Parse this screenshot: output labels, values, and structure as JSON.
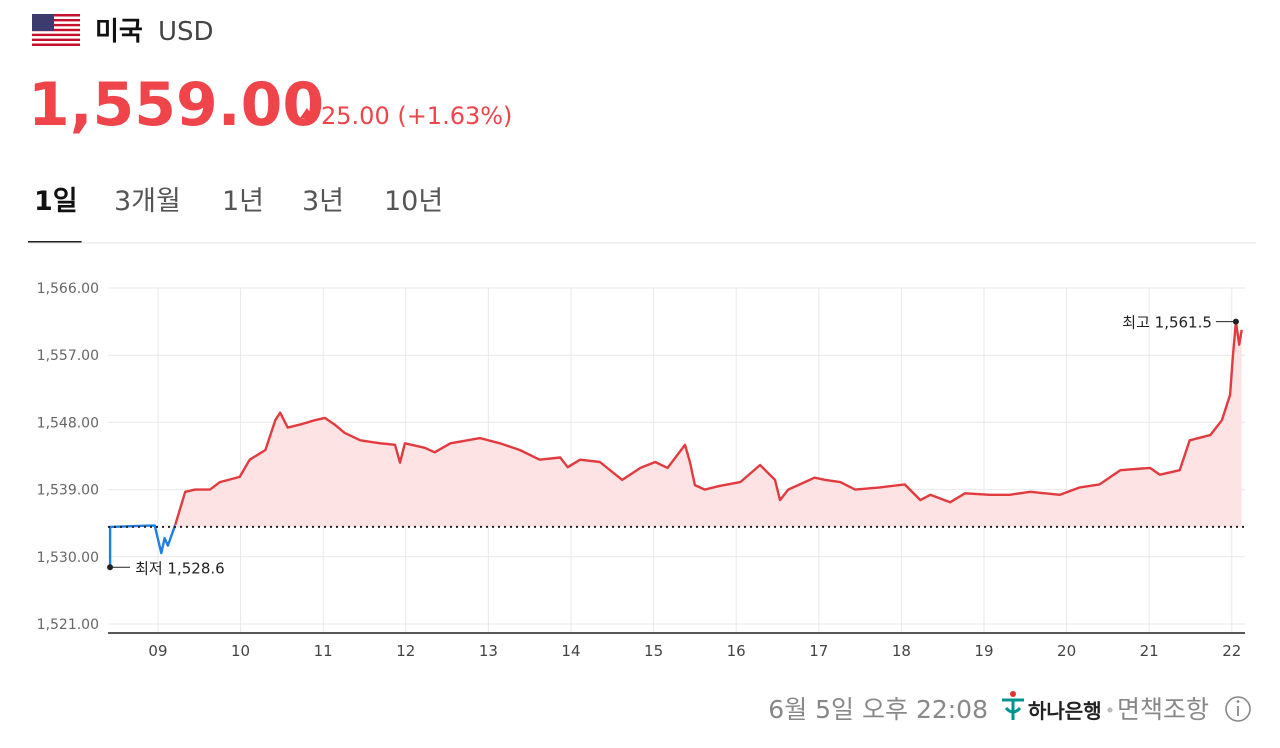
{
  "header": {
    "country": "미국",
    "currency": "USD",
    "price": "1,559.00",
    "change": "25.00 (+1.63%)"
  },
  "tabs": {
    "items": [
      "1일",
      "3개월",
      "1년",
      "3년",
      "10년"
    ],
    "active": 0
  },
  "chart_data": {
    "type": "line",
    "xlim": [
      8.395,
      22.16
    ],
    "xticks": [
      {
        "value": 9,
        "label": "09"
      },
      10,
      11,
      12,
      13,
      14,
      15,
      16,
      17,
      18,
      19,
      20,
      21,
      22
    ],
    "ylim": [
      1521,
      1566
    ],
    "yticks": [
      {
        "value": 1521,
        "label": "1,521.00"
      },
      {
        "value": 1530,
        "label": "1,530.00"
      },
      {
        "value": 1539,
        "label": "1,539.00"
      },
      {
        "value": 1548,
        "label": "1,548.00"
      },
      {
        "value": 1557,
        "label": "1,557.00"
      },
      {
        "value": 1566,
        "label": "1,566.00"
      }
    ],
    "grid": true,
    "baseline": 1534,
    "area_color": "#fde3e3",
    "series": [
      {
        "color": "#1f7fe5",
        "x": [
          8.42,
          8.42,
          8.96,
          9.04,
          9.08,
          9.12,
          9.21
        ],
        "values": [
          1528.6,
          1534,
          1534.2,
          1530.5,
          1532.5,
          1531.5,
          1534.3
        ]
      },
      {
        "color": "#e23b3f",
        "x": [
          9.21,
          9.33,
          9.45,
          9.63,
          9.75,
          9.99,
          10.11,
          10.3,
          10.42,
          10.48,
          10.57,
          10.72,
          10.9,
          11.02,
          11.14,
          11.26,
          11.45,
          11.69,
          11.87,
          11.93,
          11.99,
          12.23,
          12.35,
          12.54,
          12.9,
          13.14,
          13.38,
          13.62,
          13.87,
          13.96,
          14.11,
          14.35,
          14.62,
          14.84,
          15.02,
          15.17,
          15.38,
          15.44,
          15.5,
          15.62,
          15.8,
          16.05,
          16.29,
          16.47,
          16.53,
          16.63,
          16.77,
          16.95,
          17.08,
          17.26,
          17.44,
          17.74,
          18.04,
          18.23,
          18.35,
          18.59,
          18.77,
          19.07,
          19.31,
          19.56,
          19.92,
          20.16,
          20.4,
          20.65,
          21.01,
          21.13,
          21.37,
          21.49,
          21.74,
          21.88,
          21.98,
          22.01,
          22.05,
          22.09,
          22.12
        ],
        "values": [
          1534.3,
          1538.7,
          1539,
          1539,
          1540,
          1540.7,
          1543,
          1544.3,
          1548.3,
          1549.3,
          1547.3,
          1547.7,
          1548.3,
          1548.6,
          1547.7,
          1546.6,
          1545.6,
          1545.2,
          1545,
          1542.6,
          1545.2,
          1544.6,
          1544,
          1545.2,
          1545.9,
          1545.2,
          1544.3,
          1543,
          1543.3,
          1542,
          1543,
          1542.7,
          1540.3,
          1541.9,
          1542.7,
          1541.9,
          1545,
          1542.7,
          1539.6,
          1539,
          1539.5,
          1540,
          1542.3,
          1540.3,
          1537.6,
          1539,
          1539.7,
          1540.6,
          1540.3,
          1540,
          1539,
          1539.3,
          1539.7,
          1537.6,
          1538.3,
          1537.3,
          1538.5,
          1538.3,
          1538.3,
          1538.7,
          1538.3,
          1539.3,
          1539.7,
          1541.6,
          1541.9,
          1541,
          1541.6,
          1545.6,
          1546.3,
          1548.3,
          1551.7,
          1556.4,
          1561.5,
          1558.4,
          1560.4
        ]
      }
    ],
    "annotations": [
      {
        "text": "최고 1,561.5",
        "x": 22.05,
        "y": 1561.5,
        "side": "left"
      },
      {
        "text": "최저 1,528.6",
        "x": 8.42,
        "y": 1528.6,
        "side": "right"
      }
    ]
  },
  "footer": {
    "timestamp": "6월 5일 오후 22:08",
    "bank": "하나은행",
    "disclaimer": "면책조항"
  }
}
